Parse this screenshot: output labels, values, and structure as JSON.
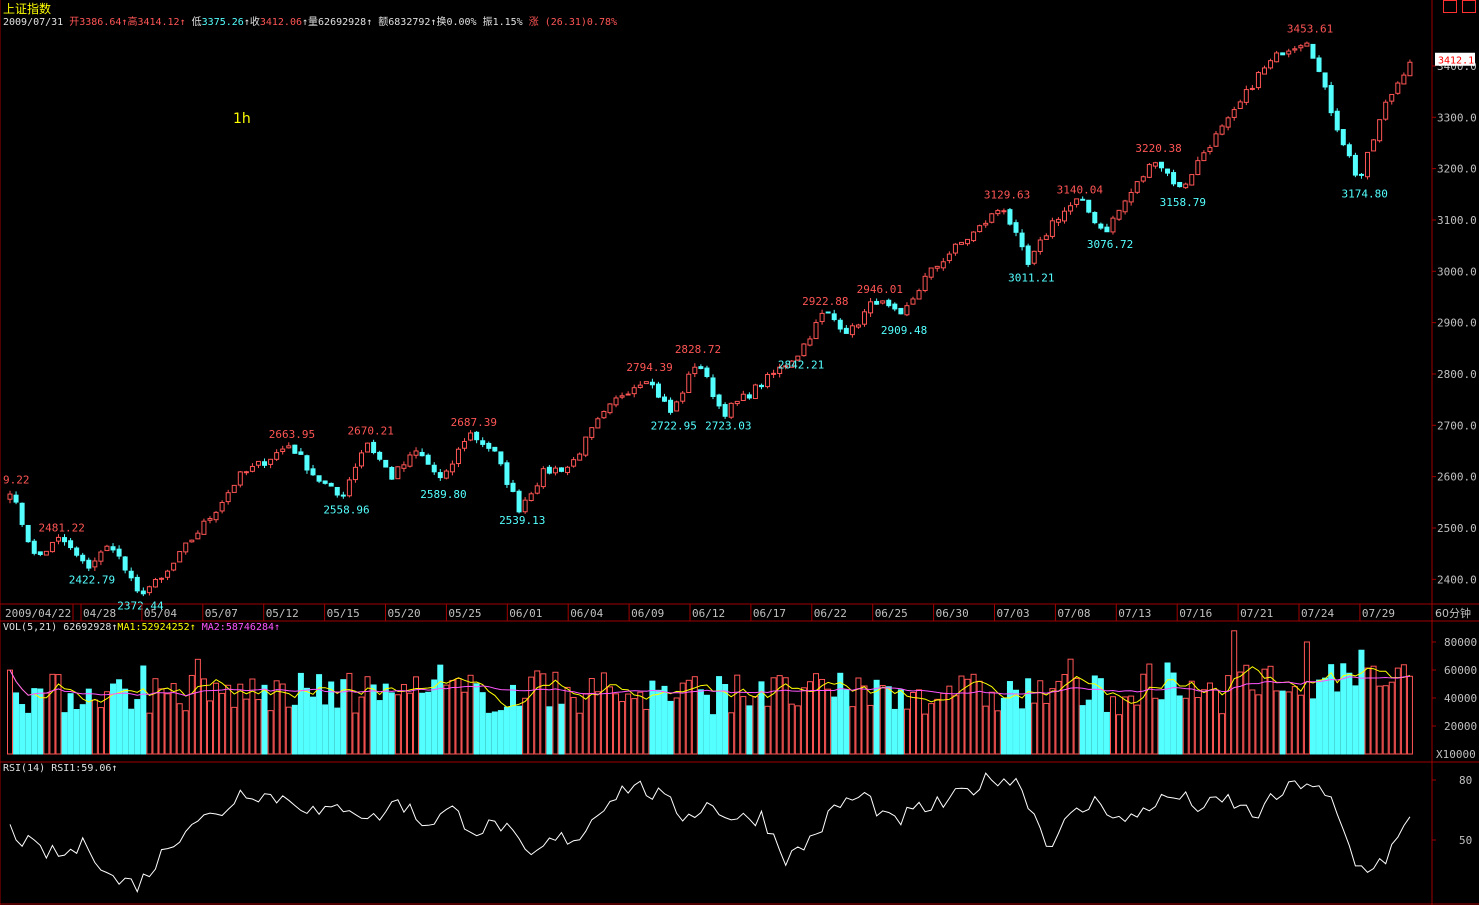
{
  "app": {
    "title": "上证指数",
    "window_controls": [
      "restore-icon",
      "close-icon"
    ]
  },
  "header": {
    "date": "2009/07/31",
    "open_label": "开",
    "open_value": "3386.64",
    "high_label": "高",
    "high_value": "3414.12",
    "low_label": "低",
    "low_value": "3375.26",
    "close_label": "收",
    "close_value": "3412.06",
    "volume_label": "量",
    "volume_value": "62692928",
    "amount_label": "额",
    "amount_value": "6832792",
    "turnover_label": "换",
    "turnover_value": "0.00%",
    "amplitude_label": "振",
    "amplitude_value": "1.15%",
    "change_label": "涨",
    "change_value": "(26.31)0.78%",
    "up_arrow": "↑"
  },
  "period_tag": "1h",
  "price_axis": {
    "ticks": [
      "3400.0",
      "3300.0",
      "3200.0",
      "3100.0",
      "3000.0",
      "2900.0",
      "2800.0",
      "2700.0",
      "2600.0",
      "2500.0",
      "2400.0"
    ],
    "current_price_tag": "3412.1"
  },
  "date_axis": {
    "labels": [
      "2009/04/22",
      "04/28",
      "05/04",
      "05/07",
      "05/12",
      "05/15",
      "05/20",
      "05/25",
      "06/01",
      "06/04",
      "06/09",
      "06/12",
      "06/17",
      "06/22",
      "06/25",
      "06/30",
      "07/03",
      "07/08",
      "07/13",
      "07/16",
      "07/21",
      "07/24",
      "07/29"
    ],
    "period_label": "60分钟"
  },
  "annotations": {
    "highs": [
      "9.22",
      "2481.22",
      "2663.95",
      "2670.21",
      "2687.39",
      "2794.39",
      "2828.72",
      "2922.88",
      "2946.01",
      "3129.63",
      "3140.04",
      "3220.38",
      "3453.61"
    ],
    "lows": [
      "2422.79",
      "2372.44",
      "2558.96",
      "2589.80",
      "2539.13",
      "2722.95",
      "2723.03",
      "2842.21",
      "2909.48",
      "3011.21",
      "3076.72",
      "3158.79",
      "3174.80"
    ]
  },
  "volume_panel": {
    "header": "VOL(5,21)",
    "value": "62692928",
    "ma1_label": "MA1:",
    "ma1_value": "52924252",
    "ma2_label": "MA2:",
    "ma2_value": "58746284",
    "arrow": "↑",
    "ticks": [
      "80000",
      "60000",
      "40000",
      "20000"
    ],
    "unit": "X10000"
  },
  "rsi_panel": {
    "header": "RSI(14)",
    "rsi1_label": "RSI1:",
    "rsi1_value": "59.06",
    "arrow": "↑",
    "ticks": [
      "80",
      "50"
    ]
  },
  "colors": {
    "up": "#ff5555",
    "down": "#54ffff",
    "ma1": "#ffff00",
    "ma2": "#ff55ff",
    "rsi": "#ffffff",
    "grid": "#a00000",
    "axis_text": "#c0c0c0"
  },
  "chart_data": {
    "type": "candlestick",
    "ylim": [
      2350,
      3470
    ],
    "waypoints": [
      2575,
      2440,
      2481,
      2422,
      2470,
      2372,
      2400,
      2470,
      2530,
      2600,
      2630,
      2663,
      2600,
      2558,
      2670,
      2600,
      2650,
      2589,
      2687,
      2650,
      2539,
      2610,
      2620,
      2700,
      2760,
      2794,
      2722,
      2828,
      2723,
      2760,
      2800,
      2842,
      2922,
      2880,
      2946,
      2909,
      2990,
      3040,
      3080,
      3129,
      3011,
      3100,
      3140,
      3076,
      3150,
      3220,
      3158,
      3240,
      3300,
      3380,
      3430,
      3453,
      3300,
      3174,
      3320,
      3412
    ],
    "volume_ylim": [
      0,
      90000
    ],
    "rsi_ylim": [
      20,
      85
    ],
    "rsi_waypoints": [
      55,
      45,
      42,
      48,
      30,
      28,
      45,
      60,
      62,
      75,
      72,
      70,
      62,
      68,
      60,
      70,
      58,
      65,
      55,
      58,
      40,
      50,
      52,
      70,
      78,
      72,
      62,
      68,
      60,
      62,
      40,
      52,
      68,
      72,
      58,
      65,
      68,
      75,
      82,
      78,
      48,
      62,
      70,
      58,
      68,
      72,
      66,
      70,
      62,
      73,
      80,
      68,
      35,
      40,
      59
    ]
  }
}
